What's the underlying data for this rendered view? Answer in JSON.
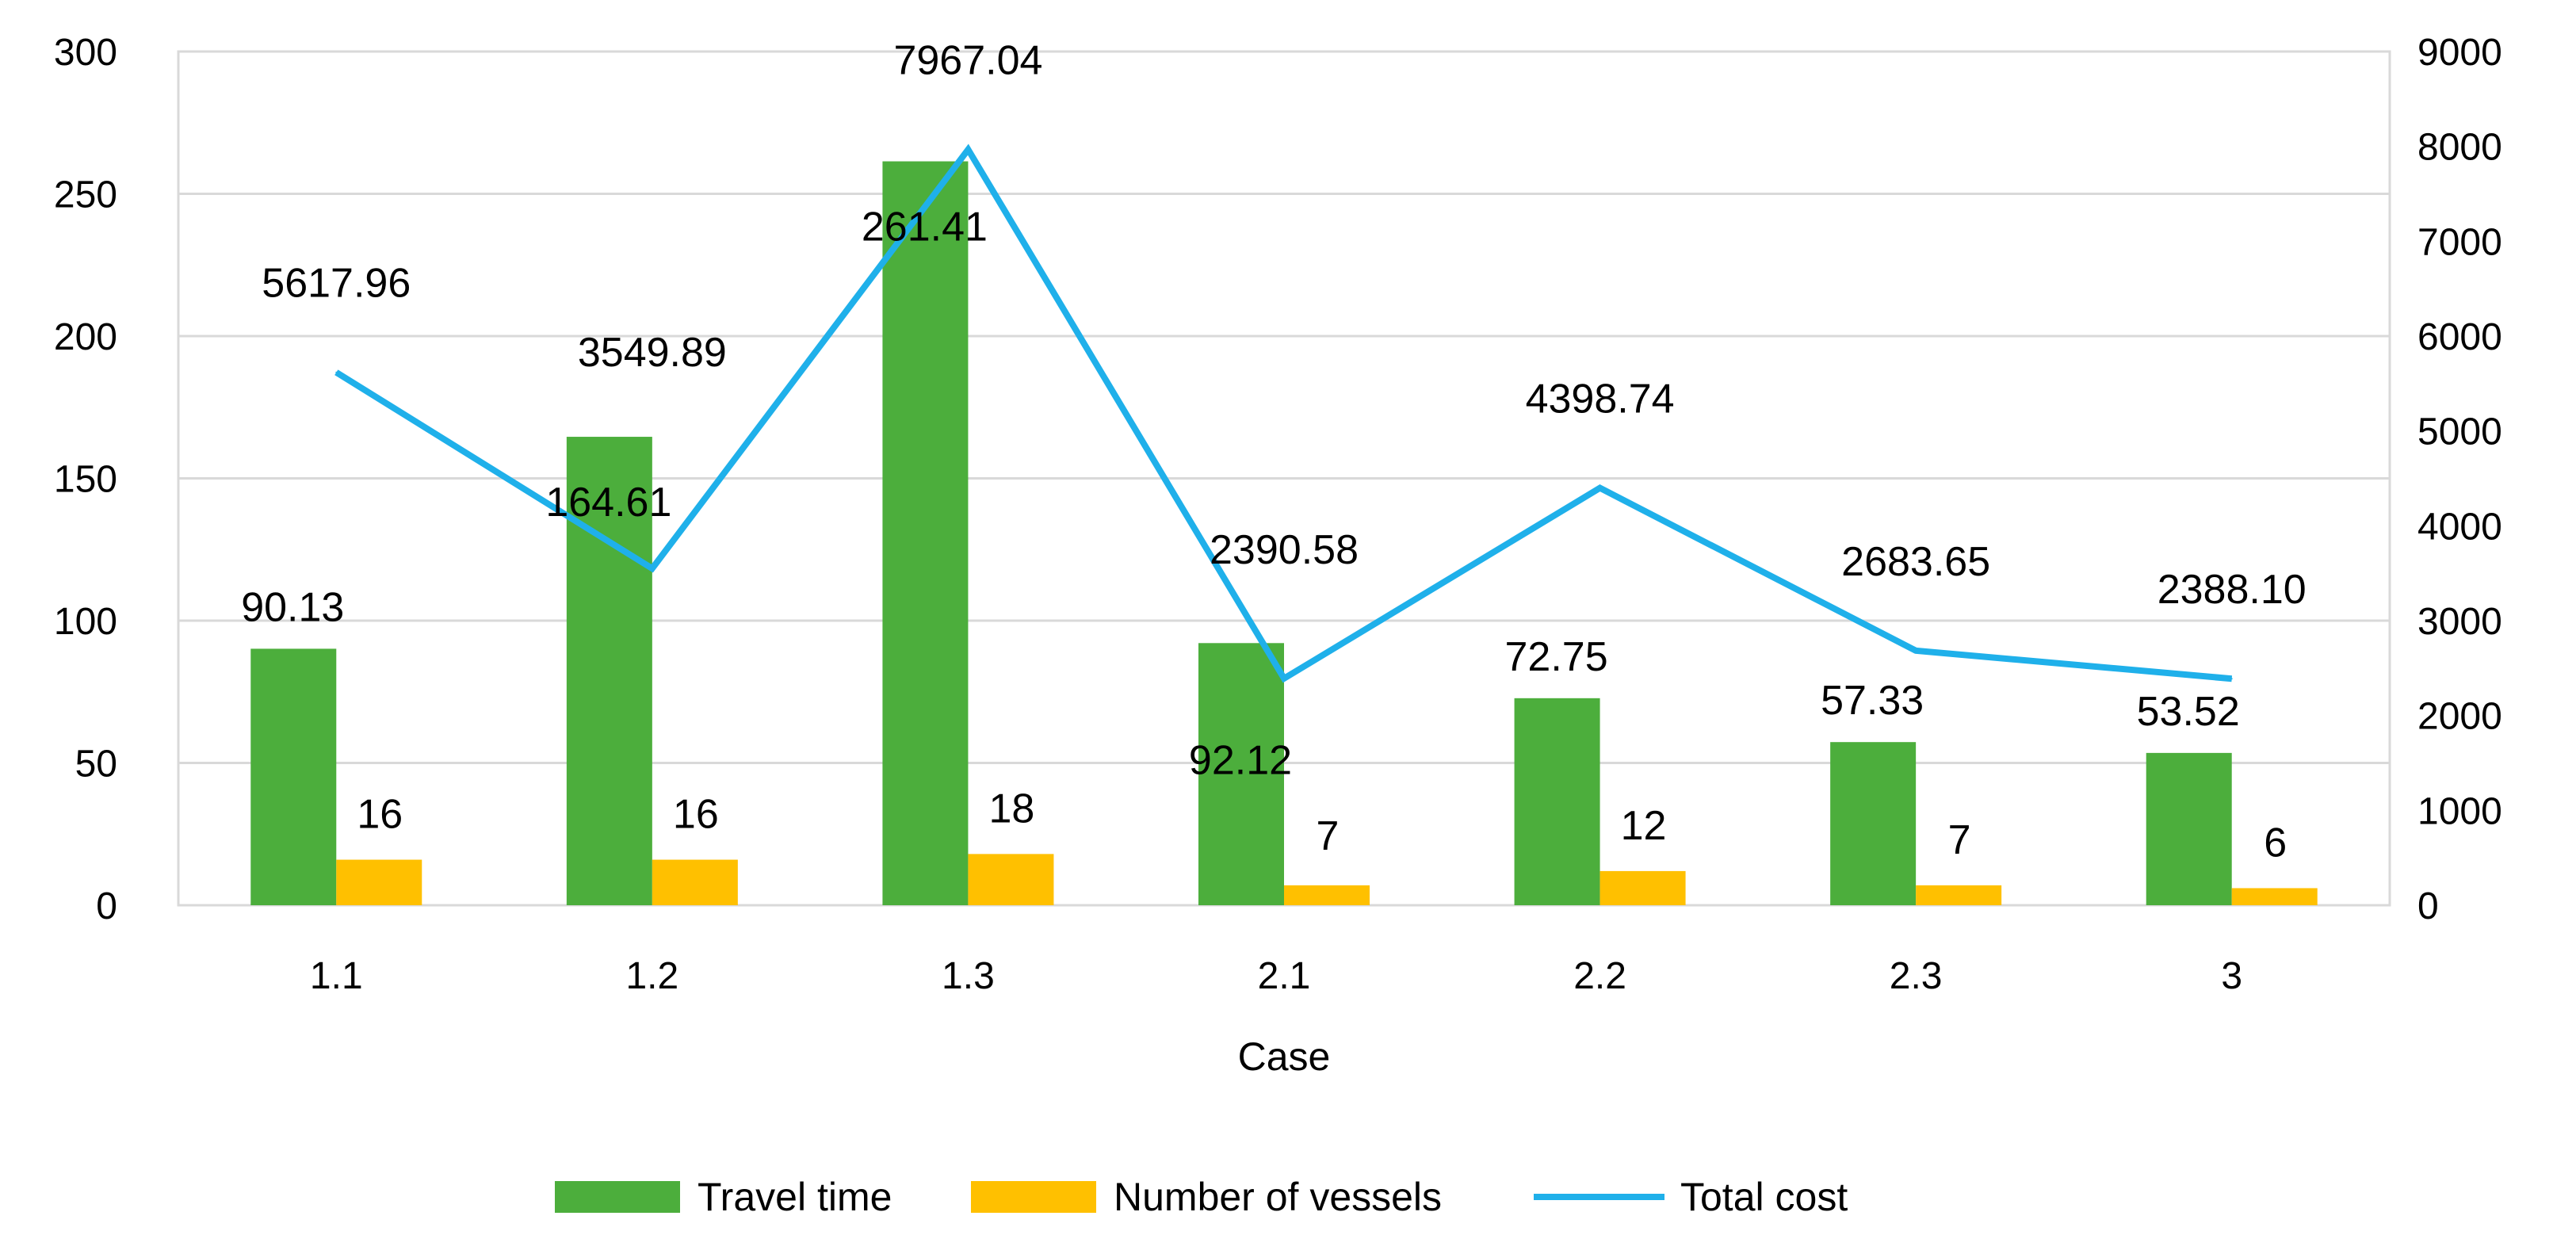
{
  "chart_data": {
    "type": "bar",
    "categories": [
      "1.1",
      "1.2",
      "1.3",
      "2.1",
      "2.2",
      "2.3",
      "3"
    ],
    "xlabel": "Case",
    "y_left": {
      "ylim": [
        0,
        300
      ],
      "ticks": [
        "0",
        "50",
        "100",
        "150",
        "200",
        "250",
        "300"
      ]
    },
    "y_right": {
      "ylim": [
        0,
        9000
      ],
      "ticks": [
        "0",
        "1000",
        "2000",
        "3000",
        "4000",
        "5000",
        "6000",
        "7000",
        "8000",
        "9000"
      ]
    },
    "grid": true,
    "legend_position": "bottom",
    "series": [
      {
        "name": "Travel time",
        "kind": "bar",
        "axis": "left",
        "color": "#4cae3c",
        "values": [
          90.13,
          164.61,
          261.41,
          92.12,
          72.75,
          57.33,
          53.52
        ],
        "labels": [
          "90.13",
          "164.61",
          "261.41",
          "92.12",
          "72.75",
          "57.33",
          "53.52"
        ]
      },
      {
        "name": "Number of vessels",
        "kind": "bar",
        "axis": "left",
        "color": "#ffc000",
        "values": [
          16,
          16,
          18,
          7,
          12,
          7,
          6
        ],
        "labels": [
          "16",
          "16",
          "18",
          "7",
          "12",
          "7",
          "6"
        ]
      },
      {
        "name": "Total cost",
        "kind": "line",
        "axis": "right",
        "color": "#1fb0ea",
        "values": [
          5617.96,
          3549.89,
          7967.04,
          2390.58,
          4398.74,
          2683.65,
          2388.1
        ],
        "labels": [
          "5617.96",
          "3549.89",
          "7967.04",
          "2390.58",
          "4398.74",
          "2683.65",
          "2388.10"
        ]
      }
    ]
  }
}
